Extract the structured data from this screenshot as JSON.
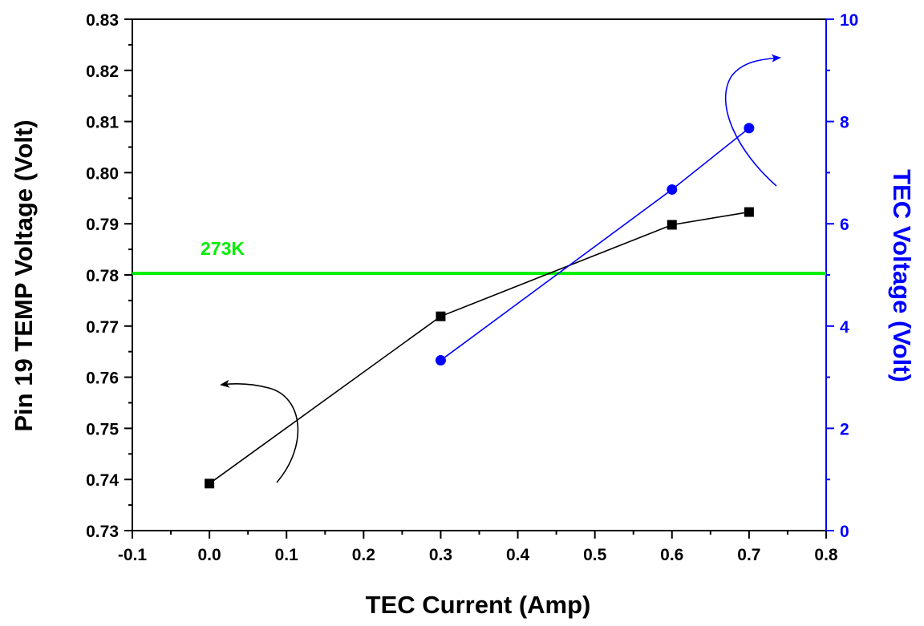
{
  "colors": {
    "left_axis": "#000000",
    "right_axis": "#0000ff",
    "pin19_series": "#000000",
    "tec_voltage_series": "#0000ff",
    "reference_line": "#00ee00"
  },
  "chart_data": {
    "type": "line",
    "title": "",
    "xlabel": "TEC Current (Amp)",
    "ylabel_left": "Pin 19 TEMP Voltage (Volt)",
    "ylabel_right": "TEC Voltage (Volt)",
    "xlim": [
      -0.1,
      0.8
    ],
    "ylim_left": [
      0.73,
      0.83
    ],
    "ylim_right": [
      0,
      10
    ],
    "x_ticks": [
      "-0.1",
      "0.0",
      "0.1",
      "0.2",
      "0.3",
      "0.4",
      "0.5",
      "0.6",
      "0.7",
      "0.8"
    ],
    "y_left_ticks": [
      "0.73",
      "0.74",
      "0.75",
      "0.76",
      "0.77",
      "0.78",
      "0.79",
      "0.80",
      "0.81",
      "0.82",
      "0.83"
    ],
    "y_right_ticks": [
      "0",
      "2",
      "4",
      "6",
      "8",
      "10"
    ],
    "grid": false,
    "legend": "none",
    "series": [
      {
        "axis": "left",
        "marker": "square",
        "x": [
          0.0,
          0.3,
          0.6,
          0.7
        ],
        "y": [
          0.7392,
          0.7719,
          0.7898,
          0.7923
        ]
      },
      {
        "axis": "right",
        "marker": "circle",
        "x": [
          0.3,
          0.6,
          0.7
        ],
        "y": [
          3.33,
          6.67,
          7.87
        ]
      }
    ],
    "reference_lines": [
      {
        "axis": "left",
        "y": 0.7803,
        "label": "273K"
      }
    ],
    "annotations": [
      {
        "type": "curved-arrow",
        "points_to": "left-axis"
      },
      {
        "type": "curved-arrow",
        "points_to": "right-axis"
      }
    ]
  }
}
